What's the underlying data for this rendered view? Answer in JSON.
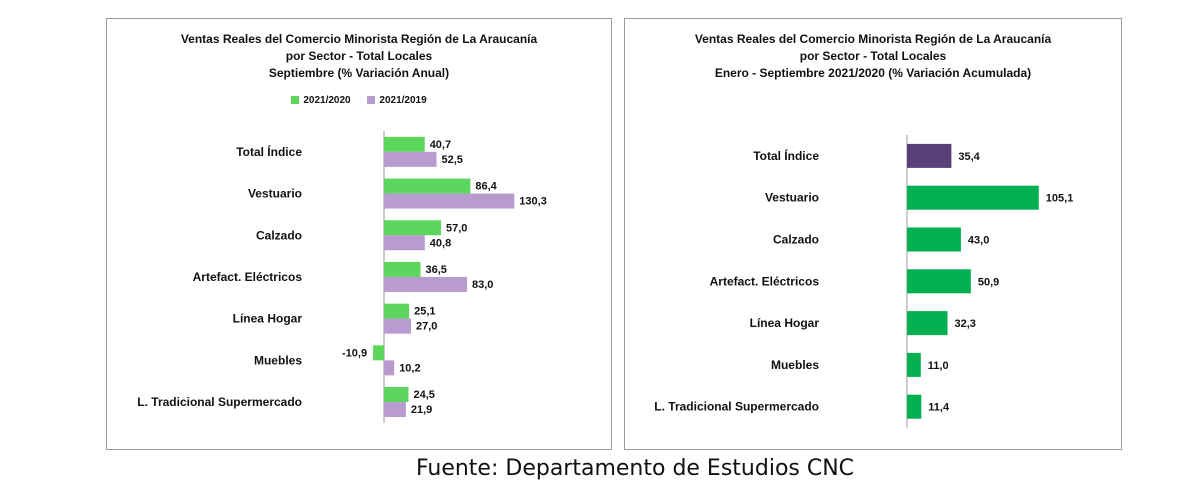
{
  "chart_data": [
    {
      "type": "bar",
      "orientation": "horizontal",
      "title_lines": [
        "Ventas Reales del Comercio Minorista  Región de La Araucanía",
        "por Sector  - Total Locales",
        "Septiembre  (% Variación Anual)"
      ],
      "categories": [
        "Total Índice",
        "Vestuario",
        "Calzado",
        "Artefact. Eléctricos",
        "Línea Hogar",
        "Muebles",
        "L. Tradicional Supermercado"
      ],
      "series": [
        {
          "name": "2021/2020",
          "color": "#5cd65c",
          "values": [
            40.7,
            86.4,
            57.0,
            36.5,
            25.1,
            -10.9,
            24.5
          ],
          "labels": [
            "40,7",
            "86,4",
            "57,0",
            "36,5",
            "25,1",
            "-10,9",
            "24,5"
          ]
        },
        {
          "name": "2021/2019",
          "color": "#b89cd0",
          "values": [
            52.5,
            130.3,
            40.8,
            83.0,
            27.0,
            10.2,
            21.9
          ],
          "labels": [
            "52,5",
            "130,3",
            "40,8",
            "83,0",
            "27,0",
            "10,2",
            "21,9"
          ]
        }
      ],
      "legend": "top",
      "grid": false
    },
    {
      "type": "bar",
      "orientation": "horizontal",
      "title_lines": [
        "Ventas Reales del Comercio Minorista Región de La Araucanía",
        "por Sector - Total Locales",
        "Enero - Septiembre 2021/2020 (% Variación Acumulada)"
      ],
      "categories": [
        "Total Índice",
        "Vestuario",
        "Calzado",
        "Artefact. Eléctricos",
        "Línea Hogar",
        "Muebles",
        "L. Tradicional Supermercado"
      ],
      "values": [
        35.4,
        105.1,
        43.0,
        50.9,
        32.3,
        11.0,
        11.4
      ],
      "labels": [
        "35,4",
        "105,1",
        "43,0",
        "50,9",
        "32,3",
        "11,0",
        "11,4"
      ],
      "bar_colors": [
        "#5b3f78",
        "#00b050",
        "#00b050",
        "#00b050",
        "#00b050",
        "#00b050",
        "#00b050"
      ],
      "grid": false
    }
  ],
  "source": "Fuente: Departamento de Estudios CNC"
}
